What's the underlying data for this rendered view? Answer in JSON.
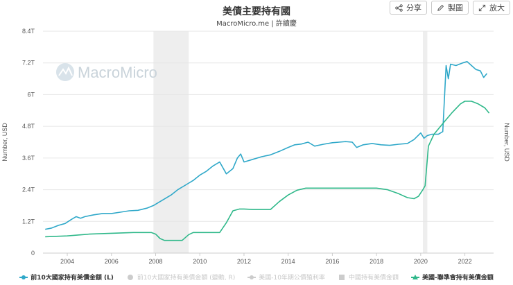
{
  "title": "美債主要持有國",
  "subtitle": "MacroMicro.me | 許續慶",
  "watermark": "MacroMicro",
  "toolbar": {
    "share_label": "分享",
    "draw_label": "製圖",
    "expand_label": "放大"
  },
  "colors": {
    "series1": "#2fa8c9",
    "series2": "#2fb88a",
    "recession": "#eeeeee",
    "grid": "#e6e6e6",
    "axis_text": "#555555",
    "legend_off": "#cccccc"
  },
  "chart_data": {
    "type": "line",
    "title": "美債主要持有國",
    "ylabel_left": "Number, USD",
    "ylabel_right": "Number, USD",
    "ylim": [
      0,
      8.4
    ],
    "y_ticks": [
      0,
      1.2,
      2.4,
      3.6,
      4.8,
      6,
      7.2,
      8.4
    ],
    "y_tick_labels": [
      "0",
      "1.2T",
      "2.4T",
      "3.6T",
      "4.8T",
      "6T",
      "7.2T",
      "8.4T"
    ],
    "xlim": [
      2002.9,
      2023.3
    ],
    "x_ticks": [
      2004,
      2006,
      2008,
      2010,
      2012,
      2014,
      2016,
      2018,
      2020,
      2022
    ],
    "x_tick_labels": [
      "2004",
      "2006",
      "2008",
      "2010",
      "2012",
      "2014",
      "2016",
      "2018",
      "2020",
      "2022"
    ],
    "recessions": [
      [
        2007.9,
        2009.5
      ],
      [
        2020.1,
        2020.3
      ]
    ],
    "series": [
      {
        "name": "前10大國家持有美債金額 (L)",
        "legend_state": "active",
        "symbol": "dot",
        "color": "#2fa8c9",
        "x": [
          2003.0,
          2003.3,
          2003.6,
          2003.9,
          2004.2,
          2004.4,
          2004.6,
          2004.8,
          2005.2,
          2005.6,
          2006.0,
          2006.4,
          2006.8,
          2007.2,
          2007.6,
          2007.9,
          2008.2,
          2008.4,
          2008.7,
          2009.0,
          2009.4,
          2009.7,
          2010.0,
          2010.3,
          2010.6,
          2010.9,
          2011.2,
          2011.5,
          2011.7,
          2011.85,
          2012.0,
          2012.4,
          2012.8,
          2013.2,
          2013.6,
          2014.0,
          2014.3,
          2014.6,
          2014.9,
          2015.2,
          2015.6,
          2016.0,
          2016.3,
          2016.6,
          2016.9,
          2017.1,
          2017.4,
          2017.8,
          2018.2,
          2018.6,
          2019.0,
          2019.4,
          2019.7,
          2020.0,
          2020.15,
          2020.3,
          2020.5,
          2020.8,
          2021.0,
          2021.15,
          2021.25,
          2021.35,
          2021.6,
          2021.9,
          2022.1,
          2022.3,
          2022.5,
          2022.7,
          2022.85,
          2023.0
        ],
        "values": [
          0.9,
          0.95,
          1.05,
          1.12,
          1.28,
          1.38,
          1.32,
          1.38,
          1.45,
          1.5,
          1.5,
          1.55,
          1.6,
          1.62,
          1.7,
          1.8,
          1.95,
          2.05,
          2.2,
          2.4,
          2.6,
          2.75,
          2.95,
          3.1,
          3.3,
          3.45,
          3.0,
          3.2,
          3.6,
          3.75,
          3.45,
          3.55,
          3.65,
          3.72,
          3.85,
          4.0,
          4.1,
          4.13,
          4.2,
          4.05,
          4.12,
          4.18,
          4.2,
          4.22,
          4.2,
          4.0,
          4.1,
          4.15,
          4.1,
          4.08,
          4.12,
          4.15,
          4.3,
          4.55,
          4.35,
          4.45,
          4.5,
          4.5,
          4.6,
          7.1,
          6.6,
          7.15,
          7.1,
          7.2,
          7.25,
          7.1,
          6.95,
          6.9,
          6.65,
          6.8
        ]
      },
      {
        "name": "前10大國家持有美債金額 (變動, R)",
        "legend_state": "inactive",
        "symbol": "dot",
        "color": "#cccccc"
      },
      {
        "name": "美國-10年期公債殖利率",
        "legend_state": "inactive",
        "symbol": "line-dot",
        "color": "#cccccc"
      },
      {
        "name": "中國持有美債金額",
        "legend_state": "inactive",
        "symbol": "square",
        "color": "#cccccc"
      },
      {
        "name": "美國-聯準會持有美債金額",
        "legend_state": "active",
        "symbol": "triangle",
        "color": "#2fb88a",
        "x": [
          2003.0,
          2004.0,
          2005.0,
          2006.0,
          2007.0,
          2007.8,
          2008.0,
          2008.2,
          2008.4,
          2008.8,
          2009.2,
          2009.5,
          2009.7,
          2010.0,
          2010.5,
          2010.9,
          2011.2,
          2011.5,
          2011.8,
          2012.0,
          2012.4,
          2012.8,
          2013.2,
          2013.6,
          2014.0,
          2014.4,
          2014.8,
          2015.2,
          2016.0,
          2017.0,
          2018.0,
          2018.5,
          2019.0,
          2019.4,
          2019.7,
          2019.9,
          2020.1,
          2020.2,
          2020.35,
          2020.6,
          2021.0,
          2021.4,
          2021.8,
          2022.0,
          2022.3,
          2022.6,
          2022.9,
          2023.1
        ],
        "values": [
          0.62,
          0.65,
          0.72,
          0.75,
          0.78,
          0.78,
          0.72,
          0.55,
          0.48,
          0.48,
          0.48,
          0.7,
          0.78,
          0.78,
          0.78,
          0.78,
          1.15,
          1.6,
          1.67,
          1.67,
          1.65,
          1.65,
          1.65,
          1.95,
          2.2,
          2.38,
          2.46,
          2.46,
          2.46,
          2.46,
          2.46,
          2.4,
          2.25,
          2.1,
          2.06,
          2.15,
          2.4,
          2.55,
          4.05,
          4.5,
          4.9,
          5.3,
          5.65,
          5.75,
          5.75,
          5.65,
          5.5,
          5.3
        ]
      }
    ]
  }
}
